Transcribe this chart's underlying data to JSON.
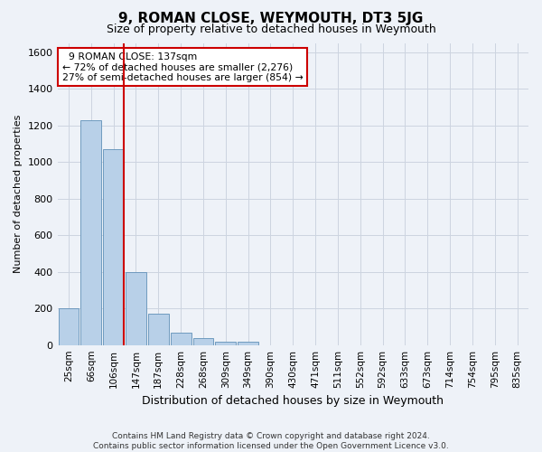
{
  "title": "9, ROMAN CLOSE, WEYMOUTH, DT3 5JG",
  "subtitle": "Size of property relative to detached houses in Weymouth",
  "xlabel": "Distribution of detached houses by size in Weymouth",
  "ylabel": "Number of detached properties",
  "footer_line1": "Contains HM Land Registry data © Crown copyright and database right 2024.",
  "footer_line2": "Contains public sector information licensed under the Open Government Licence v3.0.",
  "property_label": "9 ROMAN CLOSE: 137sqm",
  "annotation_line1": "← 72% of detached houses are smaller (2,276)",
  "annotation_line2": "27% of semi-detached houses are larger (854) →",
  "bar_color": "#b8d0e8",
  "bar_edge_color": "#6090b8",
  "marker_color": "#cc0000",
  "background_color": "#eef2f8",
  "categories": [
    "25sqm",
    "66sqm",
    "106sqm",
    "147sqm",
    "187sqm",
    "228sqm",
    "268sqm",
    "309sqm",
    "349sqm",
    "390sqm",
    "430sqm",
    "471sqm",
    "511sqm",
    "552sqm",
    "592sqm",
    "633sqm",
    "673sqm",
    "714sqm",
    "754sqm",
    "795sqm",
    "835sqm"
  ],
  "values": [
    200,
    1230,
    1070,
    400,
    170,
    70,
    40,
    20,
    20,
    0,
    0,
    0,
    0,
    0,
    0,
    0,
    0,
    0,
    0,
    0,
    0
  ],
  "ylim": [
    0,
    1650
  ],
  "yticks": [
    0,
    200,
    400,
    600,
    800,
    1000,
    1200,
    1400,
    1600
  ],
  "property_bin_index": 2,
  "grid_color": "#ccd4e0",
  "annotation_box_color": "#ffffff",
  "annotation_box_edge": "#cc0000",
  "title_fontsize": 11,
  "subtitle_fontsize": 9,
  "ylabel_fontsize": 8,
  "xlabel_fontsize": 9,
  "tick_fontsize": 8,
  "xtick_fontsize": 7.5,
  "footer_fontsize": 6.5
}
